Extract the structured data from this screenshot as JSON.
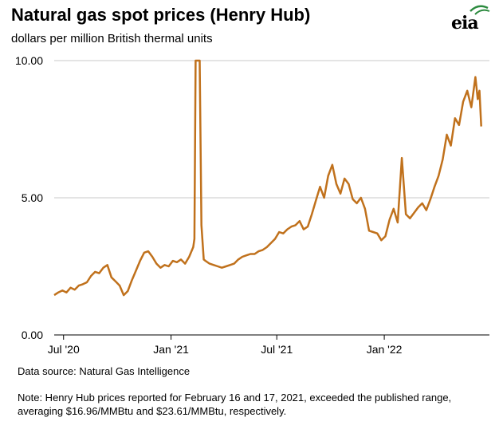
{
  "header": {
    "title": "Natural gas spot prices (Henry Hub)",
    "subtitle": "dollars per million British thermal units",
    "logo_text": "eia"
  },
  "footer": {
    "source": "Data source: Natural Gas Intelligence",
    "note": "Note: Henry Hub prices reported for February 16 and 17, 2021, exceeded the published range, averaging $16.96/MMBtu and $23.61/MMBtu, respectively."
  },
  "colors": {
    "line": "#c0711c",
    "grid": "#c8c8c8",
    "logo_accent": "#2b8a3e"
  },
  "chart_data": {
    "type": "line",
    "title": "Natural gas spot prices (Henry Hub)",
    "ylabel": "dollars per million British thermal units",
    "ylim": [
      0,
      10
    ],
    "xlim": [
      "2020-06-15",
      "2022-06-30"
    ],
    "yticks": [
      {
        "value": 0,
        "label": "0.00"
      },
      {
        "value": 5,
        "label": "5.00"
      },
      {
        "value": 10,
        "label": "10.00"
      }
    ],
    "xticks": [
      {
        "date": "2020-07-01",
        "label": "Jul '20"
      },
      {
        "date": "2021-01-01",
        "label": "Jan '21"
      },
      {
        "date": "2021-07-01",
        "label": "Jul '21"
      },
      {
        "date": "2022-01-01",
        "label": "Jan '22"
      }
    ],
    "grid": true,
    "series": [
      {
        "values": [
          [
            "2020-06-15",
            1.45
          ],
          [
            "2020-06-22",
            1.55
          ],
          [
            "2020-06-29",
            1.62
          ],
          [
            "2020-07-06",
            1.55
          ],
          [
            "2020-07-13",
            1.72
          ],
          [
            "2020-07-20",
            1.65
          ],
          [
            "2020-07-27",
            1.8
          ],
          [
            "2020-08-03",
            1.85
          ],
          [
            "2020-08-10",
            1.92
          ],
          [
            "2020-08-17",
            2.15
          ],
          [
            "2020-08-24",
            2.3
          ],
          [
            "2020-08-31",
            2.25
          ],
          [
            "2020-09-07",
            2.45
          ],
          [
            "2020-09-14",
            2.55
          ],
          [
            "2020-09-21",
            2.1
          ],
          [
            "2020-09-28",
            1.95
          ],
          [
            "2020-10-05",
            1.8
          ],
          [
            "2020-10-12",
            1.45
          ],
          [
            "2020-10-19",
            1.6
          ],
          [
            "2020-10-26",
            2.0
          ],
          [
            "2020-11-02",
            2.35
          ],
          [
            "2020-11-09",
            2.7
          ],
          [
            "2020-11-16",
            3.0
          ],
          [
            "2020-11-23",
            3.05
          ],
          [
            "2020-11-30",
            2.85
          ],
          [
            "2020-12-07",
            2.6
          ],
          [
            "2020-12-14",
            2.45
          ],
          [
            "2020-12-21",
            2.55
          ],
          [
            "2020-12-28",
            2.5
          ],
          [
            "2021-01-04",
            2.7
          ],
          [
            "2021-01-11",
            2.65
          ],
          [
            "2021-01-18",
            2.75
          ],
          [
            "2021-01-25",
            2.6
          ],
          [
            "2021-02-01",
            2.85
          ],
          [
            "2021-02-08",
            3.2
          ],
          [
            "2021-02-10",
            3.5
          ],
          [
            "2021-02-12",
            10.0
          ],
          [
            "2021-02-16",
            10.0
          ],
          [
            "2021-02-17",
            10.0
          ],
          [
            "2021-02-19",
            10.0
          ],
          [
            "2021-02-22",
            4.0
          ],
          [
            "2021-02-26",
            2.75
          ],
          [
            "2021-03-01",
            2.7
          ],
          [
            "2021-03-08",
            2.6
          ],
          [
            "2021-03-15",
            2.55
          ],
          [
            "2021-03-22",
            2.5
          ],
          [
            "2021-03-29",
            2.45
          ],
          [
            "2021-04-05",
            2.5
          ],
          [
            "2021-04-12",
            2.55
          ],
          [
            "2021-04-19",
            2.6
          ],
          [
            "2021-04-26",
            2.75
          ],
          [
            "2021-05-03",
            2.85
          ],
          [
            "2021-05-10",
            2.9
          ],
          [
            "2021-05-17",
            2.95
          ],
          [
            "2021-05-24",
            2.95
          ],
          [
            "2021-05-31",
            3.05
          ],
          [
            "2021-06-07",
            3.1
          ],
          [
            "2021-06-14",
            3.2
          ],
          [
            "2021-06-21",
            3.35
          ],
          [
            "2021-06-28",
            3.5
          ],
          [
            "2021-07-05",
            3.75
          ],
          [
            "2021-07-12",
            3.7
          ],
          [
            "2021-07-19",
            3.85
          ],
          [
            "2021-07-26",
            3.95
          ],
          [
            "2021-08-02",
            4.0
          ],
          [
            "2021-08-09",
            4.15
          ],
          [
            "2021-08-16",
            3.85
          ],
          [
            "2021-08-23",
            3.95
          ],
          [
            "2021-08-30",
            4.4
          ],
          [
            "2021-09-06",
            4.9
          ],
          [
            "2021-09-13",
            5.4
          ],
          [
            "2021-09-20",
            5.0
          ],
          [
            "2021-09-27",
            5.8
          ],
          [
            "2021-10-04",
            6.2
          ],
          [
            "2021-10-11",
            5.5
          ],
          [
            "2021-10-18",
            5.15
          ],
          [
            "2021-10-25",
            5.7
          ],
          [
            "2021-11-01",
            5.5
          ],
          [
            "2021-11-08",
            4.95
          ],
          [
            "2021-11-15",
            4.8
          ],
          [
            "2021-11-22",
            5.0
          ],
          [
            "2021-11-29",
            4.6
          ],
          [
            "2021-12-06",
            3.8
          ],
          [
            "2021-12-13",
            3.75
          ],
          [
            "2021-12-20",
            3.7
          ],
          [
            "2021-12-27",
            3.45
          ],
          [
            "2022-01-03",
            3.6
          ],
          [
            "2022-01-10",
            4.2
          ],
          [
            "2022-01-17",
            4.6
          ],
          [
            "2022-01-24",
            4.1
          ],
          [
            "2022-01-31",
            6.45
          ],
          [
            "2022-02-07",
            4.4
          ],
          [
            "2022-02-14",
            4.25
          ],
          [
            "2022-02-21",
            4.45
          ],
          [
            "2022-02-28",
            4.65
          ],
          [
            "2022-03-07",
            4.8
          ],
          [
            "2022-03-14",
            4.55
          ],
          [
            "2022-03-21",
            4.95
          ],
          [
            "2022-03-28",
            5.4
          ],
          [
            "2022-04-04",
            5.8
          ],
          [
            "2022-04-11",
            6.4
          ],
          [
            "2022-04-18",
            7.3
          ],
          [
            "2022-04-25",
            6.9
          ],
          [
            "2022-05-02",
            7.9
          ],
          [
            "2022-05-09",
            7.65
          ],
          [
            "2022-05-16",
            8.5
          ],
          [
            "2022-05-23",
            8.9
          ],
          [
            "2022-05-30",
            8.3
          ],
          [
            "2022-06-06",
            9.4
          ],
          [
            "2022-06-10",
            8.6
          ],
          [
            "2022-06-13",
            8.9
          ],
          [
            "2022-06-16",
            7.6
          ]
        ]
      }
    ]
  }
}
